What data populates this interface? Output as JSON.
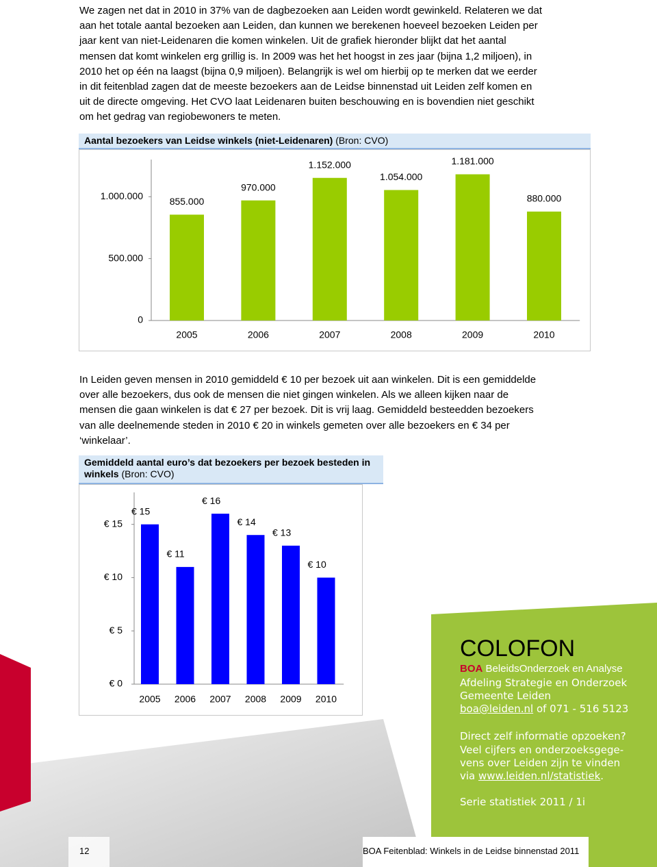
{
  "paragraphs": [
    [
      "We zagen net dat in 2010 in 37% van de dagbezoeken aan Leiden wordt gewinkeld. Relateren we dat",
      "aan het totale aantal bezoeken aan Leiden, dan kunnen we berekenen hoeveel bezoeken Leiden per",
      "jaar kent van niet-Leidenaren die komen winkelen. Uit de grafiek hieronder blijkt dat het aantal",
      "mensen dat komt winkelen erg grillig is. In 2009 was het het hoogst in zes jaar (bijna 1,2 miljoen), in",
      "2010 het op één na laagst (bijna 0,9 miljoen). Belangrijk is wel om hierbij op te merken dat we eerder",
      "in dit feitenblad zagen dat de meeste bezoekers aan de Leidse binnenstad uit Leiden zelf komen en",
      "uit de directe omgeving. Het CVO laat Leidenaren buiten beschouwing en is bovendien niet geschikt",
      "om het gedrag van regiobewoners te meten."
    ],
    [
      "In Leiden geven mensen in 2010 gemiddeld € 10 per bezoek uit aan winkelen. Dit is een gemiddelde",
      "over alle bezoekers, dus ook de mensen die niet gingen winkelen. Als we alleen kijken naar de",
      "mensen die gaan winkelen is dat € 27 per bezoek. Dit is vrij laag. Gemiddeld besteedden bezoekers",
      "van alle deelnemende steden in 2010 € 20 in winkels gemeten over alle bezoekers en € 34 per",
      "‘winkelaar’."
    ]
  ],
  "charts": [
    {
      "type": "bar",
      "title": "Aantal bezoekers van Leidse winkels (niet-Leidenaren)",
      "source": "(Bron: CVO)",
      "categories": [
        "2005",
        "2006",
        "2007",
        "2008",
        "2009",
        "2010"
      ],
      "values": [
        855000,
        970000,
        1152000,
        1054000,
        1181000,
        880000
      ],
      "value_labels": [
        "855.000",
        "970.000",
        "1.152.000",
        "1.054.000",
        "1.181.000",
        "880.000"
      ],
      "color": "#99cc00",
      "ylim": [
        0,
        1300000
      ],
      "yticks": [
        0,
        {
          "value": 500000,
          "label": "500.000"
        },
        {
          "value": 1000000,
          "label": "1.000.000"
        }
      ]
    },
    {
      "type": "bar",
      "title": "Gemiddeld aantal euro’s dat bezoekers per bezoek besteden in winkels",
      "source": "(Bron: CVO)",
      "categories": [
        "2005",
        "2006",
        "2007",
        "2008",
        "2009",
        "2010"
      ],
      "values": [
        15,
        11,
        16,
        14,
        13,
        10
      ],
      "value_labels": [
        "€ 15",
        "€ 11",
        "€ 16",
        "€ 14",
        "€ 13",
        "€ 10"
      ],
      "color": "#0000ff",
      "ylim": [
        0,
        18
      ],
      "yticks": [
        {
          "value": 0,
          "label": "€ 0"
        },
        {
          "value": 5,
          "label": "€ 5"
        },
        {
          "value": 10,
          "label": "€ 10"
        },
        {
          "value": 15,
          "label": "€ 15"
        }
      ]
    }
  ],
  "colofon": {
    "heading": "COLOFON",
    "org_abbr": "BOA",
    "org_name": "BeleidsOnderzoek en Analyse",
    "department": "Afdeling Strategie en Onderzoek",
    "municipality": "Gemeente Leiden",
    "email": "boa@leiden.nl",
    "phone": "of 071 - 516 5123",
    "info_lines": [
      "Direct zelf informatie opzoeken?",
      "Veel cijfers en onderzoeksgege-",
      "vens over Leiden zijn te vinden"
    ],
    "via": "via",
    "website": "www.leiden.nl/statistiek",
    "series": "Serie statistiek 2011 / 1i"
  },
  "footer": {
    "page_number": "12",
    "text": "BOA Feitenblad: Winkels in de Leidse binnenstad 2011"
  }
}
